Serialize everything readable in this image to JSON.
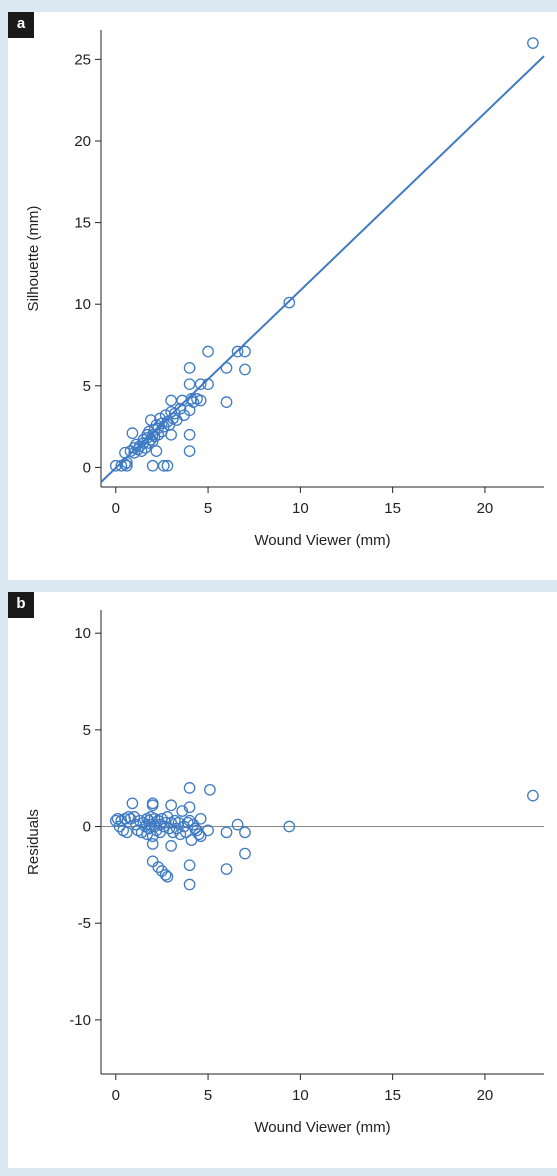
{
  "figure": {
    "panels": [
      {
        "label": "a"
      },
      {
        "label": "b"
      }
    ]
  },
  "colors": {
    "background": "#dbe8f1",
    "point": "#3f7bc4",
    "fit_line": "#3f7bc4",
    "zero_line": "#888888",
    "axis": "#222222"
  },
  "chart_data": [
    {
      "type": "scatter",
      "title": "",
      "xlabel": "Wound Viewer (mm)",
      "ylabel": "Silhouette (mm)",
      "xlim": [
        -0.8,
        23.2
      ],
      "ylim": [
        -1.2,
        26.8
      ],
      "xticks": [
        0,
        5,
        10,
        15,
        20
      ],
      "yticks": [
        0,
        5,
        10,
        15,
        20,
        25
      ],
      "grid": false,
      "fit_line": {
        "x": [
          -0.8,
          23.2
        ],
        "y": [
          -0.9,
          25.2
        ]
      },
      "points": [
        [
          0,
          0.1
        ],
        [
          0.3,
          0.1
        ],
        [
          0.5,
          0.2
        ],
        [
          0.6,
          0.1
        ],
        [
          0.6,
          0.3
        ],
        [
          0.5,
          0.9
        ],
        [
          0.8,
          1.0
        ],
        [
          0.9,
          2.1
        ],
        [
          1.0,
          1.2
        ],
        [
          1.0,
          0.9
        ],
        [
          1.1,
          1.4
        ],
        [
          1.2,
          1.1
        ],
        [
          1.3,
          1.3
        ],
        [
          1.4,
          1.0
        ],
        [
          1.5,
          1.5
        ],
        [
          1.5,
          1.7
        ],
        [
          1.6,
          1.2
        ],
        [
          1.7,
          1.8
        ],
        [
          1.7,
          2.0
        ],
        [
          1.8,
          1.5
        ],
        [
          1.8,
          2.2
        ],
        [
          1.9,
          1.7
        ],
        [
          1.9,
          2.9
        ],
        [
          2.0,
          2.0
        ],
        [
          2.0,
          1.6
        ],
        [
          2.0,
          0.1
        ],
        [
          2.1,
          2.3
        ],
        [
          2.1,
          1.9
        ],
        [
          2.2,
          1.0
        ],
        [
          2.2,
          2.6
        ],
        [
          2.3,
          2.0
        ],
        [
          2.3,
          2.4
        ],
        [
          2.4,
          3.0
        ],
        [
          2.5,
          2.2
        ],
        [
          2.5,
          2.7
        ],
        [
          2.6,
          0.1
        ],
        [
          2.6,
          2.5
        ],
        [
          2.7,
          3.2
        ],
        [
          2.8,
          2.8
        ],
        [
          2.8,
          0.1
        ],
        [
          2.9,
          2.6
        ],
        [
          3.0,
          3.4
        ],
        [
          3.0,
          4.1
        ],
        [
          3.0,
          2.0
        ],
        [
          3.1,
          3.0
        ],
        [
          3.2,
          3.3
        ],
        [
          3.3,
          2.9
        ],
        [
          3.5,
          3.6
        ],
        [
          3.6,
          4.1
        ],
        [
          3.7,
          3.2
        ],
        [
          4.0,
          2.0
        ],
        [
          4.0,
          1.0
        ],
        [
          4.0,
          3.5
        ],
        [
          4.0,
          5.1
        ],
        [
          4.0,
          6.1
        ],
        [
          4.1,
          4.2
        ],
        [
          4.2,
          4.0
        ],
        [
          4.4,
          4.2
        ],
        [
          4.6,
          4.1
        ],
        [
          4.6,
          5.1
        ],
        [
          5.0,
          7.1
        ],
        [
          5.0,
          5.1
        ],
        [
          6.0,
          6.1
        ],
        [
          6.0,
          4.0
        ],
        [
          6.6,
          7.1
        ],
        [
          7.0,
          7.1
        ],
        [
          7.0,
          6.0
        ],
        [
          9.4,
          10.1
        ],
        [
          22.6,
          26.0
        ]
      ]
    },
    {
      "type": "scatter",
      "title": "",
      "xlabel": "Wound Viewer (mm)",
      "ylabel": "Residuals",
      "xlim": [
        -0.8,
        23.2
      ],
      "ylim": [
        -12.8,
        11.2
      ],
      "xticks": [
        0,
        5,
        10,
        15,
        20
      ],
      "yticks": [
        10,
        5,
        0,
        -5,
        -10
      ],
      "ytick_labels": [
        "10",
        "5",
        "0",
        "-5",
        "-10"
      ],
      "grid": false,
      "zero_line": 0,
      "points": [
        [
          0,
          0.3
        ],
        [
          0.1,
          0.4
        ],
        [
          0.2,
          0.0
        ],
        [
          0.3,
          0.3
        ],
        [
          0.4,
          -0.2
        ],
        [
          0.5,
          0.4
        ],
        [
          0.6,
          -0.3
        ],
        [
          0.7,
          0.5
        ],
        [
          0.8,
          0.4
        ],
        [
          0.9,
          1.2
        ],
        [
          1.0,
          0.5
        ],
        [
          1.1,
          0.1
        ],
        [
          1.2,
          -0.2
        ],
        [
          1.3,
          0.3
        ],
        [
          1.4,
          -0.3
        ],
        [
          1.5,
          0.2
        ],
        [
          1.6,
          0.0
        ],
        [
          1.7,
          0.4
        ],
        [
          1.7,
          -0.4
        ],
        [
          1.8,
          0.3
        ],
        [
          1.8,
          -0.1
        ],
        [
          1.9,
          0.5
        ],
        [
          1.9,
          0.1
        ],
        [
          2.0,
          1.1
        ],
        [
          2.0,
          1.2
        ],
        [
          2.0,
          -0.5
        ],
        [
          2.0,
          -0.9
        ],
        [
          2.0,
          -1.8
        ],
        [
          2.1,
          0.4
        ],
        [
          2.1,
          0.0
        ],
        [
          2.2,
          -0.2
        ],
        [
          2.3,
          0.3
        ],
        [
          2.3,
          -2.1
        ],
        [
          2.4,
          0.1
        ],
        [
          2.4,
          -0.3
        ],
        [
          2.5,
          -2.3
        ],
        [
          2.5,
          0.4
        ],
        [
          2.6,
          0.0
        ],
        [
          2.7,
          -2.5
        ],
        [
          2.7,
          0.2
        ],
        [
          2.8,
          -2.6
        ],
        [
          2.8,
          0.5
        ],
        [
          2.9,
          -0.1
        ],
        [
          3.0,
          1.1
        ],
        [
          3.0,
          0.2
        ],
        [
          3.0,
          -1.0
        ],
        [
          3.1,
          -0.3
        ],
        [
          3.2,
          0.3
        ],
        [
          3.3,
          -0.1
        ],
        [
          3.4,
          0.2
        ],
        [
          3.5,
          -0.4
        ],
        [
          3.6,
          0.8
        ],
        [
          3.7,
          0.0
        ],
        [
          3.8,
          -0.3
        ],
        [
          3.9,
          0.2
        ],
        [
          4.0,
          2.0
        ],
        [
          4.0,
          1.0
        ],
        [
          4.0,
          -2.0
        ],
        [
          4.0,
          -3.0
        ],
        [
          4.0,
          0.3
        ],
        [
          4.1,
          -0.7
        ],
        [
          4.2,
          0.1
        ],
        [
          4.3,
          -0.1
        ],
        [
          4.4,
          -0.2
        ],
        [
          4.5,
          -0.4
        ],
        [
          4.6,
          -0.5
        ],
        [
          4.6,
          0.4
        ],
        [
          5.0,
          -0.2
        ],
        [
          5.1,
          1.9
        ],
        [
          6.0,
          -2.2
        ],
        [
          6.0,
          -0.3
        ],
        [
          6.6,
          0.1
        ],
        [
          7.0,
          -0.3
        ],
        [
          7.0,
          -1.4
        ],
        [
          9.4,
          0.0
        ],
        [
          22.6,
          1.6
        ]
      ]
    }
  ]
}
